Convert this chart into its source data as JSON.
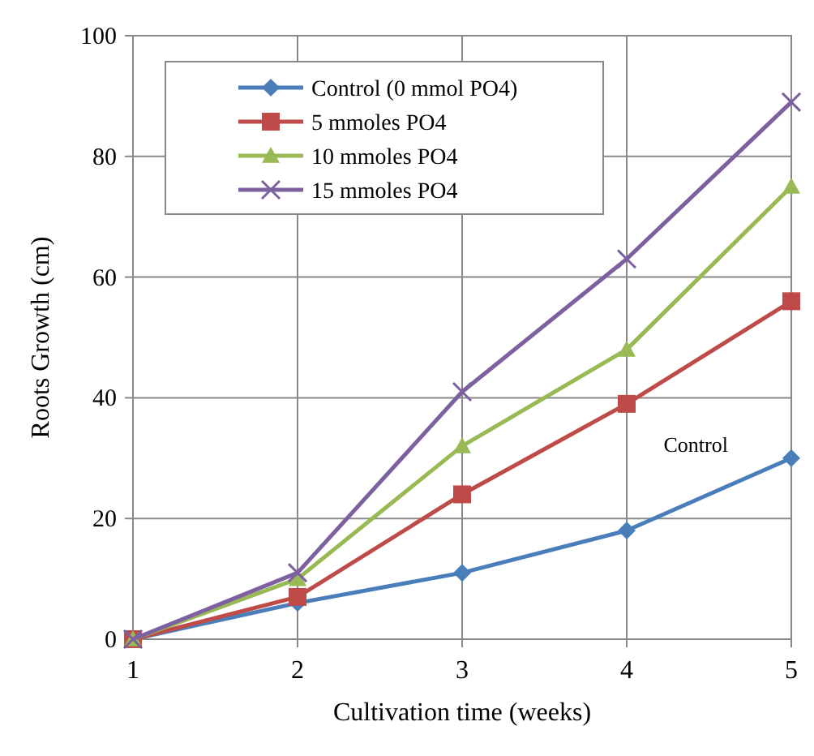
{
  "chart_data": {
    "type": "line",
    "xlabel": "Cultivation time (weeks)",
    "ylabel": "Roots Growth (cm)",
    "x": [
      1,
      2,
      3,
      4,
      5
    ],
    "xlim": [
      1,
      5
    ],
    "xticks": [
      1,
      2,
      3,
      4,
      5
    ],
    "ylim": [
      0,
      100
    ],
    "yticks": [
      0,
      20,
      40,
      60,
      80,
      100
    ],
    "grid": true,
    "legend": "top left",
    "series": [
      {
        "name": "Control (0 mmol PO4)",
        "color": "#4a7ebb",
        "marker": "diamond",
        "values": [
          0,
          6,
          11,
          18,
          30
        ]
      },
      {
        "name": "5 mmoles PO4",
        "color": "#be4b48",
        "marker": "square",
        "values": [
          0,
          7,
          24,
          39,
          56
        ]
      },
      {
        "name": "10 mmoles PO4",
        "color": "#98b954",
        "marker": "triangle",
        "values": [
          0,
          10,
          32,
          48,
          75
        ]
      },
      {
        "name": "15 mmoles PO4",
        "color": "#7d60a0",
        "marker": "cross",
        "values": [
          0,
          11,
          41,
          63,
          89
        ]
      }
    ],
    "annotations": [
      "Control"
    ]
  }
}
